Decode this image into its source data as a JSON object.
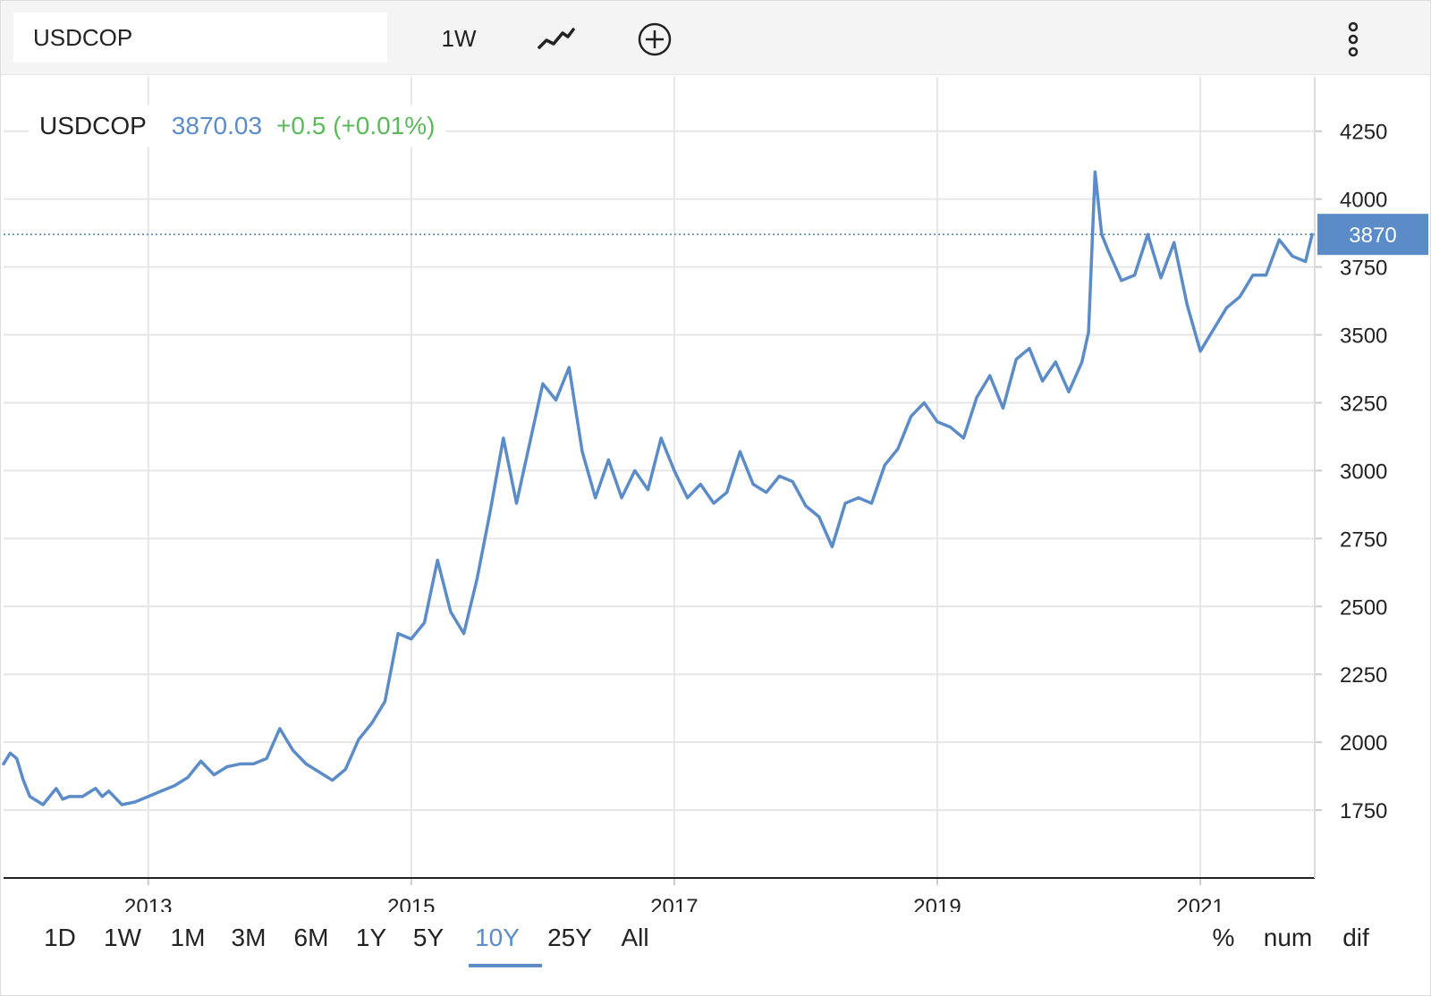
{
  "toolbar": {
    "symbol_value": "USDCOP",
    "interval_label": "1W",
    "line_icon": "line-chart-icon",
    "add_icon": "plus-circle-icon",
    "menu_icon": "vertical-dots-icon"
  },
  "legend": {
    "symbol": "USDCOP",
    "price": "3870.03",
    "change": "+0.5 (+0.01%)"
  },
  "price_tag": "3870",
  "ranges": [
    {
      "label": "1D",
      "active": false
    },
    {
      "label": "1W",
      "active": false
    },
    {
      "label": "1M",
      "active": false
    },
    {
      "label": "3M",
      "active": false
    },
    {
      "label": "6M",
      "active": false
    },
    {
      "label": "1Y",
      "active": false
    },
    {
      "label": "5Y",
      "active": false
    },
    {
      "label": "10Y",
      "active": true
    },
    {
      "label": "25Y",
      "active": false
    },
    {
      "label": "All",
      "active": false
    }
  ],
  "scale_modes": [
    "%",
    "num",
    "dif"
  ],
  "colors": {
    "line": "#5b8cc8",
    "grid": "#e6e6e6",
    "change_positive": "#5cb85c",
    "accent": "#5b8cc8"
  },
  "chart_data": {
    "type": "line",
    "title": "",
    "xlabel": "",
    "ylabel": "",
    "ylim": [
      1500,
      4450
    ],
    "xlim": [
      2011.9,
      2021.87
    ],
    "x_ticks": [
      2013,
      2015,
      2017,
      2019,
      2021
    ],
    "x_tick_labels": [
      "2013",
      "2015",
      "2017",
      "2019",
      "2021"
    ],
    "y_ticks": [
      1750,
      2000,
      2250,
      2500,
      2750,
      3000,
      3250,
      3500,
      3750,
      4000,
      4250
    ],
    "y_tick_labels": [
      "1750",
      "2000",
      "2250",
      "2500",
      "2750",
      "3000",
      "3250",
      "3500",
      "3750",
      "4000",
      "4250"
    ],
    "grid": true,
    "last_value": 3870.03,
    "series": [
      {
        "x": [
          2011.9,
          2011.95,
          2012.0,
          2012.05,
          2012.1,
          2012.2,
          2012.3,
          2012.35,
          2012.4,
          2012.5,
          2012.6,
          2012.65,
          2012.7,
          2012.8,
          2012.9,
          2013.0,
          2013.1,
          2013.2,
          2013.3,
          2013.4,
          2013.5,
          2013.6,
          2013.7,
          2013.8,
          2013.9,
          2014.0,
          2014.1,
          2014.2,
          2014.3,
          2014.4,
          2014.5,
          2014.6,
          2014.7,
          2014.8,
          2014.9,
          2015.0,
          2015.1,
          2015.2,
          2015.3,
          2015.4,
          2015.5,
          2015.6,
          2015.7,
          2015.8,
          2015.9,
          2016.0,
          2016.1,
          2016.2,
          2016.3,
          2016.4,
          2016.5,
          2016.6,
          2016.7,
          2016.8,
          2016.9,
          2017.0,
          2017.1,
          2017.2,
          2017.3,
          2017.4,
          2017.5,
          2017.6,
          2017.7,
          2017.8,
          2017.9,
          2018.0,
          2018.1,
          2018.2,
          2018.3,
          2018.4,
          2018.5,
          2018.6,
          2018.7,
          2018.8,
          2018.9,
          2019.0,
          2019.1,
          2019.2,
          2019.3,
          2019.4,
          2019.5,
          2019.6,
          2019.7,
          2019.8,
          2019.9,
          2020.0,
          2020.1,
          2020.15,
          2020.2,
          2020.25,
          2020.3,
          2020.4,
          2020.5,
          2020.6,
          2020.7,
          2020.8,
          2020.9,
          2021.0,
          2021.1,
          2021.2,
          2021.3,
          2021.4,
          2021.5,
          2021.6,
          2021.7,
          2021.8,
          2021.85
        ],
        "y": [
          1920,
          1960,
          1940,
          1860,
          1800,
          1770,
          1830,
          1790,
          1800,
          1800,
          1830,
          1800,
          1820,
          1770,
          1780,
          1800,
          1820,
          1840,
          1870,
          1930,
          1880,
          1910,
          1920,
          1920,
          1940,
          2050,
          1970,
          1920,
          1890,
          1860,
          1900,
          2010,
          2070,
          2150,
          2400,
          2380,
          2440,
          2670,
          2480,
          2400,
          2600,
          2850,
          3120,
          2880,
          3100,
          3320,
          3260,
          3380,
          3070,
          2900,
          3040,
          2900,
          3000,
          2930,
          3120,
          3000,
          2900,
          2950,
          2880,
          2920,
          3070,
          2950,
          2920,
          2980,
          2960,
          2870,
          2830,
          2720,
          2880,
          2900,
          2880,
          3020,
          3080,
          3200,
          3250,
          3180,
          3160,
          3120,
          3270,
          3350,
          3230,
          3410,
          3450,
          3330,
          3400,
          3290,
          3400,
          3510,
          4100,
          3870,
          3810,
          3700,
          3720,
          3870,
          3710,
          3840,
          3610,
          3440,
          3520,
          3600,
          3640,
          3720,
          3720,
          3850,
          3790,
          3770,
          3870
        ]
      }
    ]
  }
}
